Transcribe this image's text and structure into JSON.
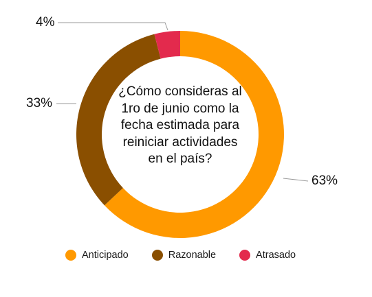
{
  "chart_data": {
    "type": "pie",
    "title": "¿Cómo consideras al 1ro de junio como la fecha estimada para reiniciar actividades en el país?",
    "categories": [
      "Anticipado",
      "Razonable",
      "Atrasado"
    ],
    "values": [
      63,
      33,
      4
    ],
    "labels": [
      "63%",
      "33%",
      "4%"
    ],
    "colors": [
      "#ff9900",
      "#8a4f00",
      "#e32a4d"
    ],
    "donut": true,
    "legend": "bottom"
  }
}
